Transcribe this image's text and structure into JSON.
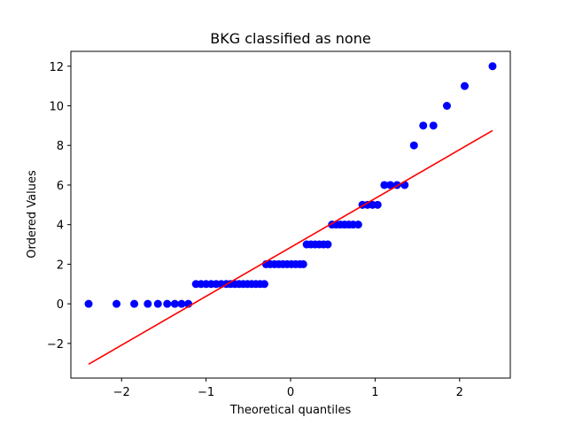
{
  "chart_data": {
    "type": "scatter",
    "title": "BKG classified as none",
    "xlabel": "Theoretical quantiles",
    "ylabel": "Ordered Values",
    "xlim": [
      -2.6,
      2.6
    ],
    "ylim": [
      -3.75,
      12.75
    ],
    "xticks": [
      -2,
      -1,
      0,
      1,
      2
    ],
    "yticks": [
      -2,
      0,
      2,
      4,
      6,
      8,
      10,
      12
    ],
    "xtick_labels": [
      "−2",
      "−1",
      "0",
      "1",
      "2"
    ],
    "ytick_labels": [
      "−2",
      "0",
      "2",
      "4",
      "6",
      "8",
      "10",
      "12"
    ],
    "grid": false,
    "series": [
      {
        "kind": "points",
        "color": "#0000ff",
        "points": [
          [
            -2.39,
            0
          ],
          [
            -2.06,
            0
          ],
          [
            -1.85,
            0
          ],
          [
            -1.69,
            0
          ],
          [
            -1.57,
            0
          ],
          [
            -1.46,
            0
          ],
          [
            -1.37,
            0
          ],
          [
            -1.29,
            0
          ],
          [
            -1.21,
            0
          ],
          [
            -1.12,
            1
          ],
          [
            -1.06,
            1
          ],
          [
            -1.0,
            1
          ],
          [
            -0.94,
            1
          ],
          [
            -0.88,
            1
          ],
          [
            -0.82,
            1
          ],
          [
            -0.76,
            1
          ],
          [
            -0.71,
            1
          ],
          [
            -0.66,
            1
          ],
          [
            -0.61,
            1
          ],
          [
            -0.56,
            1
          ],
          [
            -0.51,
            1
          ],
          [
            -0.46,
            1
          ],
          [
            -0.41,
            1
          ],
          [
            -0.36,
            1
          ],
          [
            -0.31,
            1
          ],
          [
            -0.29,
            2
          ],
          [
            -0.24,
            2
          ],
          [
            -0.19,
            2
          ],
          [
            -0.14,
            2
          ],
          [
            -0.09,
            2
          ],
          [
            -0.04,
            2
          ],
          [
            0.01,
            2
          ],
          [
            0.06,
            2
          ],
          [
            0.11,
            2
          ],
          [
            0.15,
            2
          ],
          [
            0.19,
            3
          ],
          [
            0.24,
            3
          ],
          [
            0.29,
            3
          ],
          [
            0.34,
            3
          ],
          [
            0.39,
            3
          ],
          [
            0.44,
            3
          ],
          [
            0.49,
            4
          ],
          [
            0.54,
            4
          ],
          [
            0.59,
            4
          ],
          [
            0.64,
            4
          ],
          [
            0.69,
            4
          ],
          [
            0.74,
            4
          ],
          [
            0.8,
            4
          ],
          [
            0.85,
            5
          ],
          [
            0.91,
            5
          ],
          [
            0.97,
            5
          ],
          [
            1.03,
            5
          ],
          [
            1.11,
            6
          ],
          [
            1.18,
            6
          ],
          [
            1.26,
            6
          ],
          [
            1.35,
            6
          ],
          [
            1.46,
            8
          ],
          [
            1.57,
            9
          ],
          [
            1.69,
            9
          ],
          [
            1.85,
            10
          ],
          [
            2.06,
            11
          ],
          [
            2.39,
            12
          ]
        ]
      },
      {
        "kind": "line",
        "color": "#ff0000",
        "points": [
          [
            -2.39,
            -3.05
          ],
          [
            2.39,
            8.75
          ]
        ]
      }
    ]
  }
}
